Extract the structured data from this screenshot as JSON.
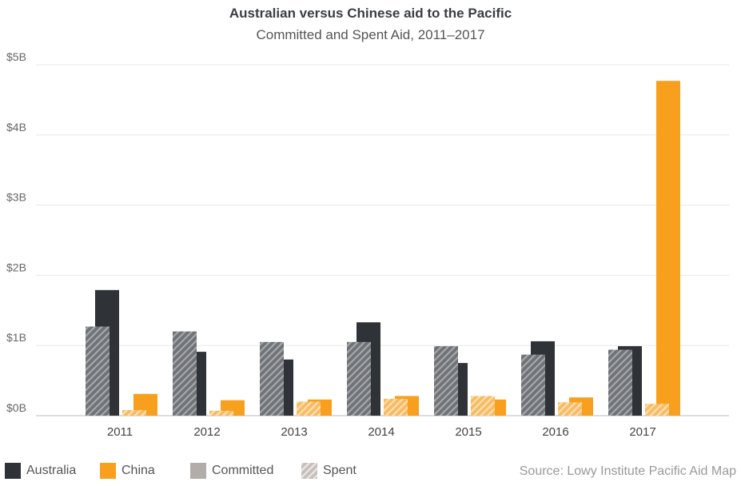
{
  "chart_data": {
    "type": "bar",
    "title": "Australian versus Chinese aid to the Pacific",
    "subtitle": "Committed and Spent Aid, 2011–2017",
    "categories": [
      "2011",
      "2012",
      "2013",
      "2014",
      "2015",
      "2016",
      "2017"
    ],
    "y_ticks": [
      "$0B",
      "$1B",
      "$2B",
      "$3B",
      "$4B",
      "$5B"
    ],
    "ylim": [
      0,
      5
    ],
    "unit": "billions of dollars",
    "grid": true,
    "series": [
      {
        "name": "Australia Committed",
        "country": "Australia",
        "measure": "Committed",
        "values": [
          1.79,
          0.91,
          0.8,
          1.33,
          0.75,
          1.06,
          0.99
        ]
      },
      {
        "name": "Australia Spent",
        "country": "Australia",
        "measure": "Spent",
        "values": [
          1.27,
          1.2,
          1.05,
          1.05,
          0.99,
          0.87,
          0.94
        ]
      },
      {
        "name": "China Committed",
        "country": "China",
        "measure": "Committed",
        "values": [
          0.31,
          0.22,
          0.23,
          0.28,
          0.23,
          0.26,
          4.77
        ]
      },
      {
        "name": "China Spent",
        "country": "China",
        "measure": "Spent",
        "values": [
          0.08,
          0.07,
          0.2,
          0.24,
          0.28,
          0.19,
          0.17
        ]
      }
    ],
    "legend": {
      "placement": "bottom-left",
      "items": [
        {
          "label": "Australia",
          "color": "#2f3237",
          "style": "solid"
        },
        {
          "label": "China",
          "color": "#f99f1e",
          "style": "solid"
        },
        {
          "label": "Committed",
          "color": "#b2ada8",
          "style": "solid"
        },
        {
          "label": "Spent",
          "color": "#c9c2bd",
          "style": "hatched"
        }
      ]
    },
    "source": "Source: Lowy Institute Pacific Aid Map"
  },
  "colors": {
    "australia": "#2f3237",
    "australia_spent": "#7c7f83",
    "china": "#f99f1e",
    "china_spent": "#fcc77a",
    "grid": "#e8e8e8",
    "axis": "#bbbbbb"
  }
}
